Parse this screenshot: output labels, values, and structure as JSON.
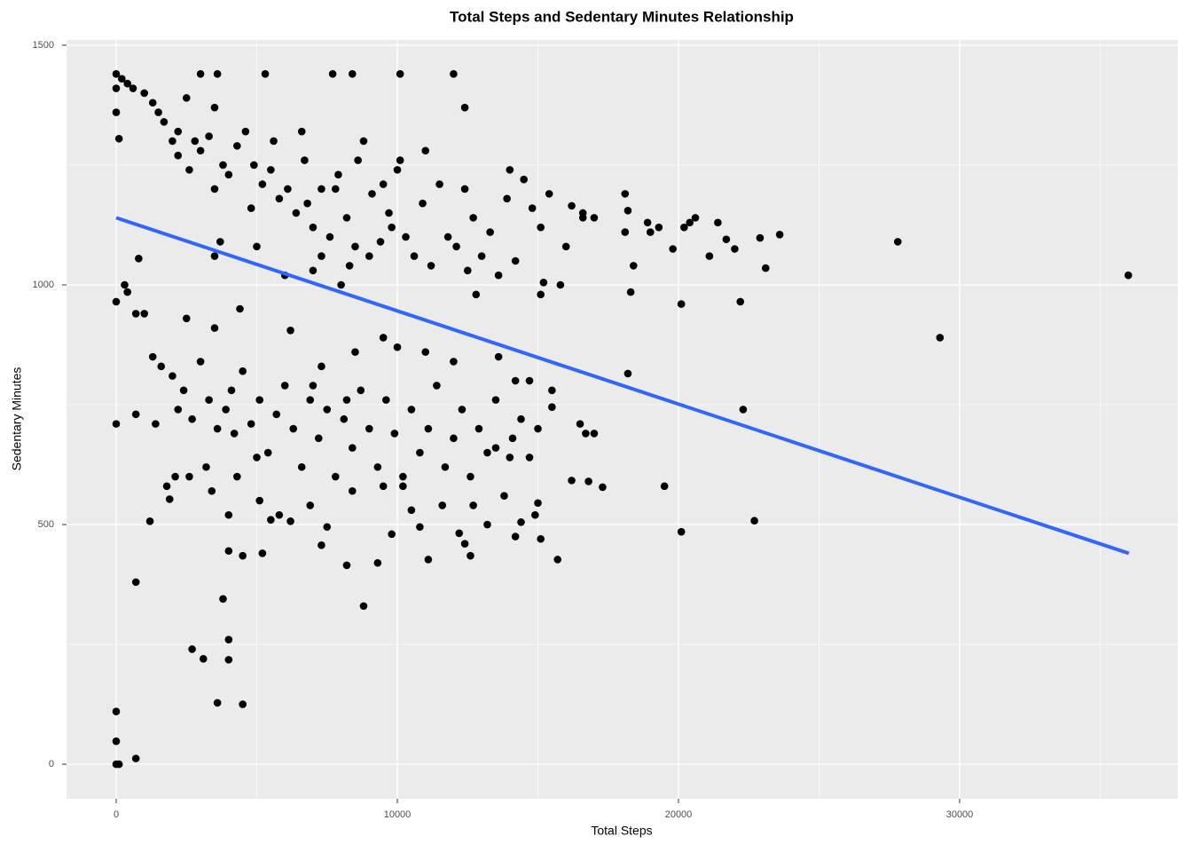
{
  "chart_data": {
    "type": "scatter",
    "title": "Total Steps and Sedentary Minutes Relationship",
    "x_label": "Total Steps",
    "y_label": "Sedentary Minutes",
    "color": "#000000",
    "x": [
      0,
      200,
      400,
      600,
      0,
      0,
      100,
      300,
      400,
      0,
      0,
      700,
      1000,
      800,
      700,
      700,
      0,
      0,
      0,
      100,
      700,
      2700,
      3100,
      4000,
      3600,
      4500,
      4000,
      3800,
      3000,
      3600,
      5300,
      7700,
      8400,
      10100,
      12000,
      12400,
      18100,
      18200,
      18300,
      18200,
      18400,
      19500,
      20100,
      20100,
      20200,
      20400,
      20600,
      21100,
      21400,
      21700,
      22000,
      22200,
      22300,
      22700,
      22900,
      23100,
      23600,
      27800,
      29300,
      36000,
      17300,
      16800,
      16200,
      15700,
      15100,
      15000,
      16500,
      16700,
      17000,
      15500,
      15500,
      14200,
      14400,
      13200,
      12600,
      12400,
      12200,
      11100,
      10800,
      9300,
      8200,
      8800,
      7500,
      7300,
      5200,
      4500,
      4000,
      1200,
      1900,
      1800,
      2100,
      17000,
      16600,
      16200,
      19300,
      19800,
      18900,
      19000,
      18100,
      15800,
      15100,
      15200,
      1000,
      1300,
      1500,
      1700,
      2000,
      2200,
      2500,
      2800,
      3000,
      3300,
      3500,
      3800,
      4000,
      4300,
      4600,
      4900,
      5200,
      5500,
      5800,
      6100,
      6400,
      6700,
      7000,
      7300,
      7600,
      7900,
      8200,
      8500,
      8800,
      9100,
      9400,
      9700,
      10000,
      10300,
      10600,
      10900,
      11200,
      11500,
      11800,
      12100,
      12400,
      12700,
      13000,
      13300,
      13600,
      13900,
      14200,
      14500,
      14800,
      15100,
      15400,
      16000,
      16600,
      5000,
      6000,
      7000,
      8000,
      9000,
      10100,
      11000,
      6600,
      7800,
      8600,
      9500,
      3500,
      2600,
      2200,
      3700,
      3500,
      6800,
      12500,
      12800,
      14000,
      9800,
      8300,
      7300,
      5600,
      4800,
      1300,
      1600,
      2000,
      2400,
      2700,
      3000,
      3300,
      3600,
      3900,
      4200,
      4500,
      4800,
      5100,
      5400,
      5700,
      6000,
      6300,
      6600,
      6900,
      7200,
      7500,
      7800,
      8100,
      8400,
      8700,
      9000,
      9300,
      9600,
      9900,
      10200,
      10500,
      10800,
      11100,
      11400,
      11700,
      12000,
      12300,
      12600,
      12900,
      13200,
      13500,
      13800,
      14100,
      14400,
      14700,
      15000,
      2500,
      3500,
      4400,
      6200,
      7300,
      8500,
      9500,
      10000,
      11000,
      12000,
      13600,
      14200,
      14700,
      1400,
      2600,
      3400,
      4300,
      5100,
      5800,
      6900,
      8400,
      9500,
      10200,
      10500,
      11600,
      12700,
      13500,
      14000,
      14900,
      9800,
      6200,
      5500,
      4000,
      3200,
      4100,
      2200,
      5000,
      7000,
      8200
    ],
    "values": [
      1440,
      1430,
      1420,
      1410,
      1410,
      1360,
      1305,
      1000,
      985,
      965,
      710,
      940,
      940,
      1055,
      730,
      380,
      110,
      48,
      0,
      0,
      12,
      240,
      220,
      218,
      128,
      125,
      260,
      345,
      1440,
      1440,
      1440,
      1440,
      1440,
      1440,
      1440,
      1370,
      1190,
      1155,
      985,
      815,
      1040,
      580,
      485,
      960,
      1120,
      1130,
      1140,
      1060,
      1130,
      1095,
      1075,
      965,
      740,
      508,
      1098,
      1035,
      1105,
      1090,
      890,
      1020,
      578,
      590,
      592,
      427,
      470,
      545,
      710,
      690,
      690,
      780,
      745,
      475,
      505,
      500,
      435,
      460,
      482,
      427,
      495,
      420,
      415,
      330,
      495,
      457,
      440,
      435,
      445,
      507,
      553,
      580,
      600,
      1140,
      1150,
      1165,
      1120,
      1075,
      1130,
      1110,
      1110,
      1000,
      980,
      1005,
      1400,
      1380,
      1360,
      1340,
      1300,
      1320,
      1390,
      1300,
      1280,
      1310,
      1370,
      1250,
      1230,
      1290,
      1320,
      1250,
      1210,
      1240,
      1180,
      1200,
      1150,
      1260,
      1120,
      1200,
      1100,
      1230,
      1140,
      1080,
      1300,
      1190,
      1090,
      1150,
      1240,
      1100,
      1060,
      1170,
      1040,
      1210,
      1100,
      1080,
      1200,
      1140,
      1060,
      1110,
      1020,
      1180,
      1050,
      1220,
      1160,
      1120,
      1190,
      1080,
      1140,
      1080,
      1020,
      1030,
      1000,
      1060,
      1260,
      1280,
      1320,
      1200,
      1260,
      1210,
      1200,
      1240,
      1270,
      1090,
      1060,
      1170,
      1030,
      980,
      1240,
      1120,
      1040,
      1060,
      1300,
      1160,
      850,
      830,
      810,
      780,
      720,
      840,
      760,
      700,
      740,
      690,
      820,
      710,
      760,
      650,
      730,
      790,
      700,
      620,
      760,
      680,
      740,
      600,
      720,
      660,
      780,
      700,
      620,
      760,
      690,
      580,
      740,
      650,
      700,
      790,
      620,
      680,
      740,
      600,
      700,
      650,
      760,
      560,
      680,
      720,
      640,
      700,
      930,
      910,
      950,
      905,
      830,
      860,
      890,
      870,
      860,
      840,
      850,
      800,
      800,
      710,
      600,
      570,
      600,
      550,
      520,
      540,
      570,
      580,
      600,
      530,
      540,
      540,
      660,
      640,
      520,
      480,
      507,
      510,
      520,
      620,
      780,
      740,
      640,
      790,
      760
    ],
    "fit_line": {
      "x": [
        0,
        36019
      ],
      "values": [
        1140,
        440
      ],
      "color": "#3366ff"
    },
    "xlim": [
      -1767,
      37760
    ],
    "ylim": [
      -72,
      1511
    ],
    "xticks": [
      0,
      10000,
      20000,
      30000
    ],
    "yticks": [
      0,
      500,
      1000,
      1500
    ],
    "x_minor_grid": [
      5000,
      15000,
      25000,
      35000
    ],
    "y_minor_grid": [
      250,
      750,
      1250
    ],
    "grid": true
  }
}
